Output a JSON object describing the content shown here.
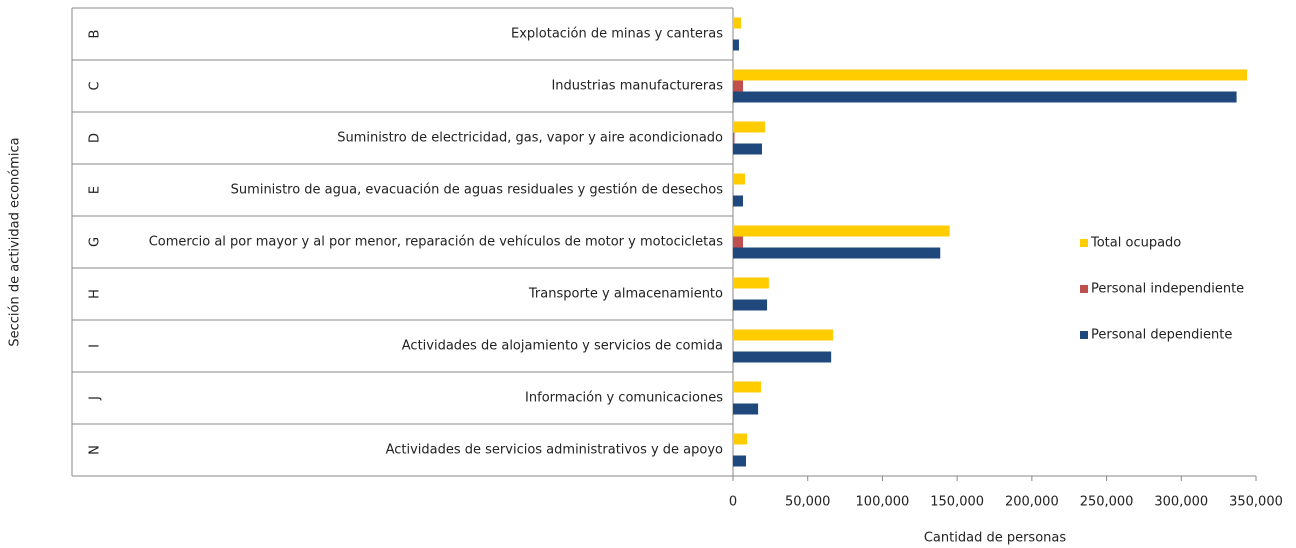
{
  "chart_data": {
    "type": "barh",
    "y_label": "Sección de actividad económica",
    "x_label": "Cantidad de personas",
    "codes": [
      "B",
      "C",
      "D",
      "E",
      "G",
      "H",
      "I",
      "J",
      "N"
    ],
    "categories": [
      "Explotación de minas y canteras",
      "Industrias manufactureras",
      "Suministro de electricidad, gas, vapor y aire acondicionado",
      "Suministro de agua, evacuación de aguas residuales y gestión de desechos",
      "Comercio al por mayor y al por menor, reparación de vehículos de motor y motocicletas",
      "Transporte y almacenamiento",
      "Actividades de alojamiento y servicios de comida",
      "Información y comunicaciones",
      "Actividades de servicios administrativos y de apoyo"
    ],
    "series": [
      {
        "name": "Total ocupado",
        "color": "#ffcc00",
        "values": [
          5400,
          344000,
          21400,
          8000,
          145000,
          24000,
          67000,
          18800,
          9400
        ]
      },
      {
        "name": "Personal independiente",
        "color": "#c0504d",
        "values": [
          0,
          6700,
          1000,
          300,
          6700,
          0,
          0,
          0,
          0
        ]
      },
      {
        "name": "Personal dependiente",
        "color": "#1f497d",
        "values": [
          4000,
          337000,
          19400,
          6700,
          138700,
          22800,
          65700,
          16800,
          8700
        ]
      }
    ],
    "xlim": [
      0,
      350000
    ],
    "xticks": [
      0,
      {
        "value": 50000,
        "label": "50,000"
      },
      {
        "value": 100000,
        "label": "100,000"
      },
      {
        "value": 150000,
        "label": "150,000"
      },
      {
        "value": 200000,
        "label": "200,000"
      },
      {
        "value": 250000,
        "label": "250,000"
      },
      {
        "value": 300000,
        "label": "300,000"
      },
      {
        "value": 350000,
        "label": "350,000"
      }
    ],
    "legend": "right"
  }
}
